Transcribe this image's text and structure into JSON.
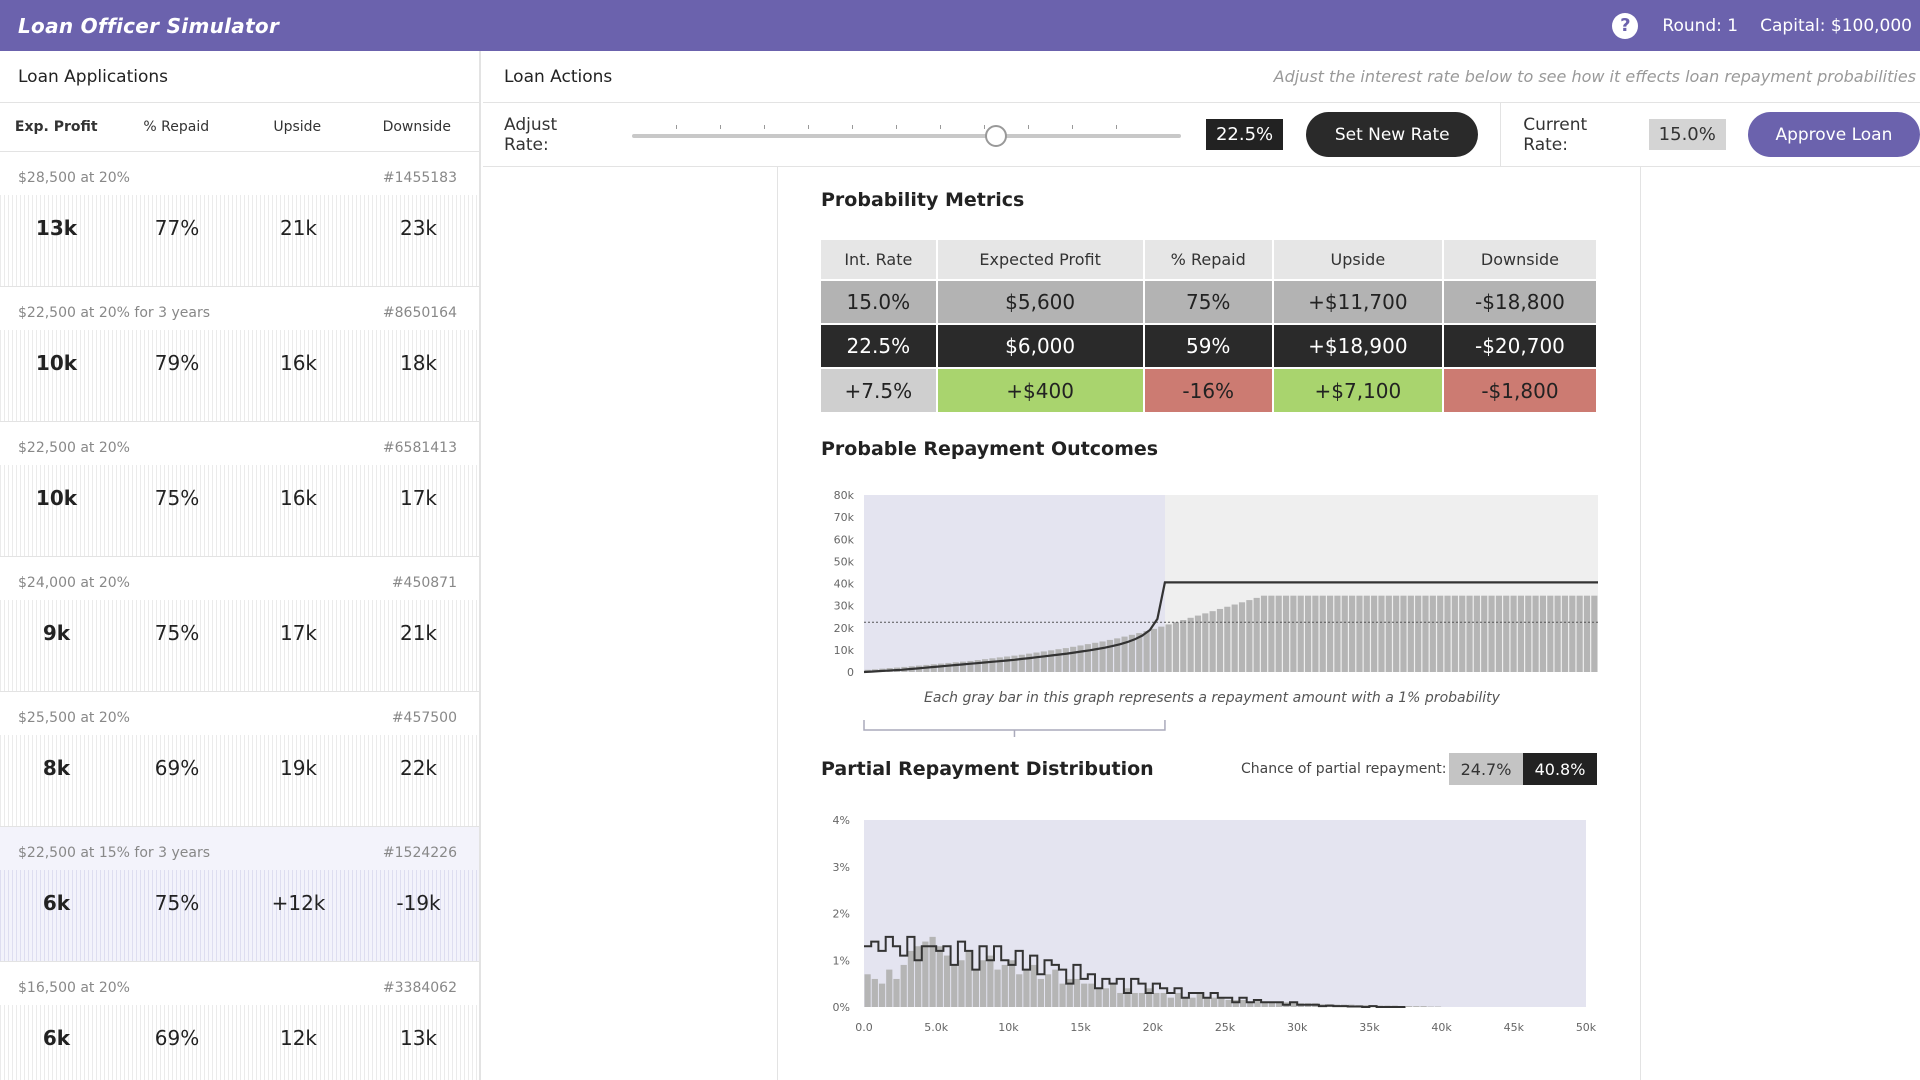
{
  "app": {
    "title": "Loan Officer Simulator",
    "help_icon": "question-circle-icon",
    "round": "Round: 1",
    "capital": "Capital: $100,000"
  },
  "applications": {
    "title": "Loan Applications",
    "columns": [
      "Exp. Profit",
      "% Repaid",
      "Upside",
      "Downside"
    ],
    "items": [
      {
        "desc": "$28,500 at 20%",
        "id": "#1455183",
        "profit": "13k",
        "repaid": "77%",
        "upside": "21k",
        "downside": "23k",
        "selected": false
      },
      {
        "desc": "$22,500 at 20% for 3 years",
        "id": "#8650164",
        "profit": "10k",
        "repaid": "79%",
        "upside": "16k",
        "downside": "18k",
        "selected": false
      },
      {
        "desc": "$22,500 at 20%",
        "id": "#6581413",
        "profit": "10k",
        "repaid": "75%",
        "upside": "16k",
        "downside": "17k",
        "selected": false
      },
      {
        "desc": "$24,000 at 20%",
        "id": "#450871",
        "profit": "9k",
        "repaid": "75%",
        "upside": "17k",
        "downside": "21k",
        "selected": false
      },
      {
        "desc": "$25,500 at 20%",
        "id": "#457500",
        "profit": "8k",
        "repaid": "69%",
        "upside": "19k",
        "downside": "22k",
        "selected": false
      },
      {
        "desc": "$22,500 at 15% for 3 years",
        "id": "#1524226",
        "profit": "6k",
        "repaid": "75%",
        "upside": "+12k",
        "downside": "-19k",
        "selected": true
      },
      {
        "desc": "$16,500 at 20%",
        "id": "#3384062",
        "profit": "6k",
        "repaid": "69%",
        "upside": "12k",
        "downside": "13k",
        "selected": false
      }
    ]
  },
  "actions": {
    "title": "Loan Actions",
    "hint": "Adjust the interest rate below to see how it effects loan repayment probabilities",
    "adjust_label": "Adjust Rate:",
    "slider_fraction": 0.66,
    "slider_value": "22.5%",
    "set_rate_label": "Set New Rate",
    "current_rate_label": "Current Rate:",
    "current_rate_value": "15.0%",
    "approve_label": "Approve Loan"
  },
  "metrics": {
    "title": "Probability Metrics",
    "headers": [
      "Int. Rate",
      "Expected Profit",
      "% Repaid",
      "Upside",
      "Downside"
    ],
    "current": [
      "15.0%",
      "$5,600",
      "75%",
      "+$11,700",
      "-$18,800"
    ],
    "new": [
      "22.5%",
      "$6,000",
      "59%",
      "+$18,900",
      "-$20,700"
    ],
    "diff": [
      "+7.5%",
      "+$400",
      "-16%",
      "+$7,100",
      "-$1,800"
    ]
  },
  "outcomes": {
    "title": "Probable Repayment Outcomes",
    "caption": "Each gray bar in this graph represents a repayment amount with a 1% probability"
  },
  "partial": {
    "title": "Partial Repayment Distribution",
    "chance_label": "Chance of partial repayment:",
    "current": "24.7%",
    "new": "40.8%"
  },
  "chart_data": [
    {
      "type": "bar",
      "y_ticks": [
        "80k",
        "70k",
        "60k",
        "50k",
        "40k",
        "30k",
        "20k",
        "10k",
        "0"
      ],
      "ylim": [
        0,
        80000
      ],
      "shaded_fraction": 0.41,
      "bars_count": 100,
      "bar_values": [
        1000,
        1200,
        1500,
        1800,
        2000,
        2300,
        2600,
        2900,
        3200,
        3500,
        3800,
        4100,
        4400,
        4700,
        5000,
        5400,
        5800,
        6200,
        6600,
        7000,
        7400,
        7800,
        8300,
        8800,
        9300,
        9800,
        10300,
        10800,
        11400,
        12000,
        12600,
        13200,
        13800,
        14500,
        15200,
        16000,
        16800,
        17600,
        18500,
        19500,
        20500,
        21500,
        22500,
        23500,
        24500,
        25500,
        26500,
        27500,
        28500,
        29500,
        30500,
        31500,
        32500,
        33500,
        34500,
        34500,
        34500,
        34500,
        34500,
        34500,
        34500,
        34500,
        34500,
        34500,
        34500,
        34500,
        34500,
        34500,
        34500,
        34500,
        34500,
        34500,
        34500,
        34500,
        34500,
        34500,
        34500,
        34500,
        34500,
        34500,
        34500,
        34500,
        34500,
        34500,
        34500,
        34500,
        34500,
        34500,
        34500,
        34500,
        34500,
        34500,
        34500,
        34500,
        34500,
        34500,
        34500,
        34500,
        34500,
        34500
      ],
      "line_values": [
        0,
        200,
        400,
        600,
        800,
        1000,
        1300,
        1600,
        1900,
        2200,
        2500,
        2800,
        3100,
        3400,
        3700,
        4000,
        4300,
        4600,
        4900,
        5200,
        5500,
        5900,
        6300,
        6700,
        7100,
        7500,
        7900,
        8300,
        8800,
        9300,
        9800,
        10400,
        11000,
        11700,
        12500,
        13500,
        14800,
        16500,
        19000,
        24000,
        40500
      ],
      "line_flat_value": 40500,
      "dashed_value": 22500
    },
    {
      "type": "bar",
      "x_ticks": [
        "0.0",
        "5.0k",
        "10k",
        "15k",
        "20k",
        "25k",
        "30k",
        "35k",
        "40k",
        "45k",
        "50k"
      ],
      "y_ticks": [
        "4%",
        "3%",
        "2%",
        "1%",
        "0%"
      ],
      "xlim": [
        0,
        50000
      ],
      "ylim": [
        0,
        4
      ],
      "bar_values": [
        0.7,
        0.6,
        0.5,
        0.8,
        0.6,
        0.9,
        1.2,
        1.3,
        1.4,
        1.5,
        1.3,
        1.1,
        0.9,
        1.0,
        1.2,
        0.8,
        1.0,
        1.1,
        0.8,
        0.9,
        1.0,
        0.7,
        0.8,
        0.9,
        0.6,
        0.7,
        0.8,
        0.5,
        0.6,
        0.6,
        0.5,
        0.5,
        0.4,
        0.4,
        0.5,
        0.3,
        0.4,
        0.3,
        0.3,
        0.4,
        0.3,
        0.3,
        0.2,
        0.3,
        0.2,
        0.2,
        0.3,
        0.2,
        0.2,
        0.2,
        0.15,
        0.15,
        0.15,
        0.1,
        0.15,
        0.1,
        0.1,
        0.1,
        0.1,
        0.1,
        0.08,
        0.08,
        0.08,
        0.06,
        0.06,
        0.05,
        0.05,
        0.05,
        0.04,
        0.04,
        0.04,
        0.03,
        0.03,
        0.03,
        0.02,
        0.02,
        0.02,
        0.02,
        0.01,
        0.01
      ],
      "line_values": [
        1.3,
        1.4,
        1.2,
        1.5,
        1.3,
        1.1,
        1.5,
        1.0,
        1.3,
        1.3,
        1.2,
        1.3,
        0.9,
        1.4,
        1.2,
        0.8,
        1.3,
        1.0,
        1.3,
        1.0,
        0.9,
        1.2,
        0.8,
        1.1,
        0.7,
        1.0,
        0.9,
        0.8,
        0.5,
        0.9,
        0.6,
        0.7,
        0.4,
        0.6,
        0.5,
        0.6,
        0.3,
        0.6,
        0.5,
        0.3,
        0.5,
        0.4,
        0.3,
        0.4,
        0.2,
        0.3,
        0.3,
        0.2,
        0.3,
        0.2,
        0.2,
        0.1,
        0.2,
        0.1,
        0.15,
        0.1,
        0.1,
        0.1,
        0.05,
        0.1,
        0.05,
        0.05,
        0.05,
        0.02,
        0.03,
        0.02,
        0.02,
        0.01,
        0.01,
        0.0,
        0.02,
        0.0,
        0.0,
        0.0,
        0.0
      ],
      "bin_width": 500
    }
  ]
}
